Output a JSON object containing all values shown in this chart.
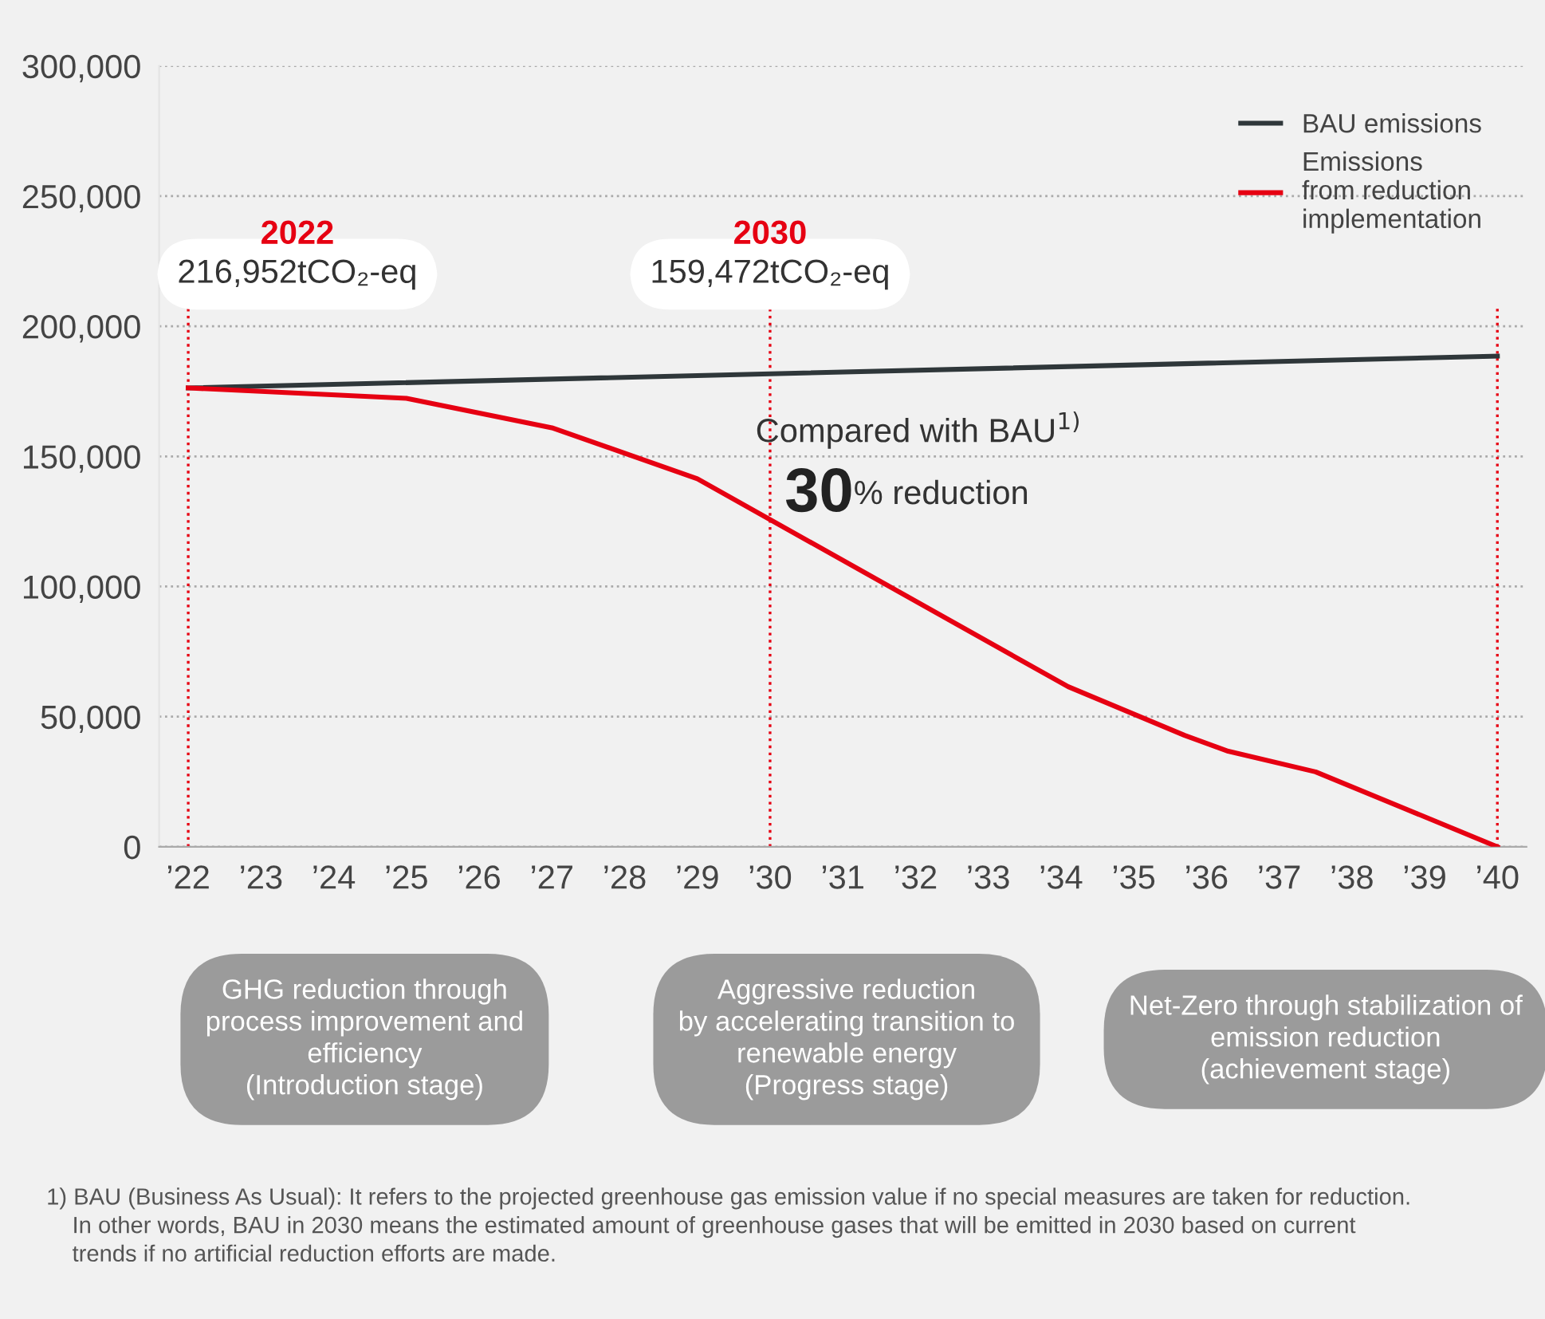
{
  "chart_data": {
    "type": "line",
    "series": [
      {
        "name": "BAU emissions",
        "color": "#2f373a",
        "x": [
          2022,
          2040
        ],
        "values": [
          176300,
          188500
        ]
      },
      {
        "name": "Emissions\nfrom reduction\nimplementation",
        "color": "#e60012",
        "x": [
          2022,
          2025,
          2027,
          2029,
          2034.1,
          2035.7,
          2036.3,
          2037.5,
          2040
        ],
        "values": [
          176300,
          172300,
          161000,
          141400,
          61500,
          42800,
          36700,
          28800,
          0
        ]
      }
    ],
    "xlim": [
      2021.6,
      2040.4
    ],
    "xticks": [
      {
        "value": 2022,
        "label": "’22"
      },
      {
        "value": 2023,
        "label": "’23"
      },
      {
        "value": 2024,
        "label": "’24"
      },
      {
        "value": 2025,
        "label": "’25"
      },
      {
        "value": 2026,
        "label": "’26"
      },
      {
        "value": 2027,
        "label": "’27"
      },
      {
        "value": 2028,
        "label": "’28"
      },
      {
        "value": 2029,
        "label": "’29"
      },
      {
        "value": 2030,
        "label": "’30"
      },
      {
        "value": 2031,
        "label": "’31"
      },
      {
        "value": 2032,
        "label": "’32"
      },
      {
        "value": 2033,
        "label": "’33"
      },
      {
        "value": 2034,
        "label": "’34"
      },
      {
        "value": 2035,
        "label": "’35"
      },
      {
        "value": 2036,
        "label": "’36"
      },
      {
        "value": 2037,
        "label": "’37"
      },
      {
        "value": 2038,
        "label": "’38"
      },
      {
        "value": 2039,
        "label": "’39"
      },
      {
        "value": 2040,
        "label": "’40"
      }
    ],
    "ylim": [
      0,
      300000
    ],
    "yticks": [
      {
        "value": 0,
        "label": "0"
      },
      {
        "value": 50000,
        "label": "50,000"
      },
      {
        "value": 100000,
        "label": "100,000"
      },
      {
        "value": 150000,
        "label": "150,000"
      },
      {
        "value": 200000,
        "label": "200,000"
      },
      {
        "value": 250000,
        "label": "250,000"
      },
      {
        "value": 300000,
        "label": "300,000"
      }
    ],
    "grid": "y",
    "legend": "top right",
    "marker": "none",
    "line_style": "solid",
    "ref_lines": [
      {
        "axis": "x",
        "value": 2022,
        "color": "#e60012",
        "line_style": "dotted"
      },
      {
        "axis": "x",
        "value": 2030,
        "color": "#e60012",
        "line_style": "dotted"
      },
      {
        "axis": "x",
        "value": 2040,
        "color": "#e60012",
        "line_style": "dotted"
      }
    ],
    "annotations": [
      "2022",
      "216,952tCO₂-eq",
      "2030",
      "159,472tCO₂-eq",
      "Compared with BAU$^{1)}$",
      "30",
      "% reduction",
      "GHG reduction through\nprocess improvement and\nefficiency\n(Introduction stage)",
      "Aggressive reduction\nby accelerating transition to\nrenewable energy\n(Progress stage)",
      "Net-Zero through stabilization of\nemission reduction\n(achievement stage)",
      "1) BAU (Business As Usual): It refers to the projected greenhouse gas emission value if no special measures are taken for reduction.\n    In other words, BAU in 2030 means the estimated amount of greenhouse gases that will be emitted in 2030 based on current\n    trends if no artificial reduction efforts are made."
    ]
  }
}
